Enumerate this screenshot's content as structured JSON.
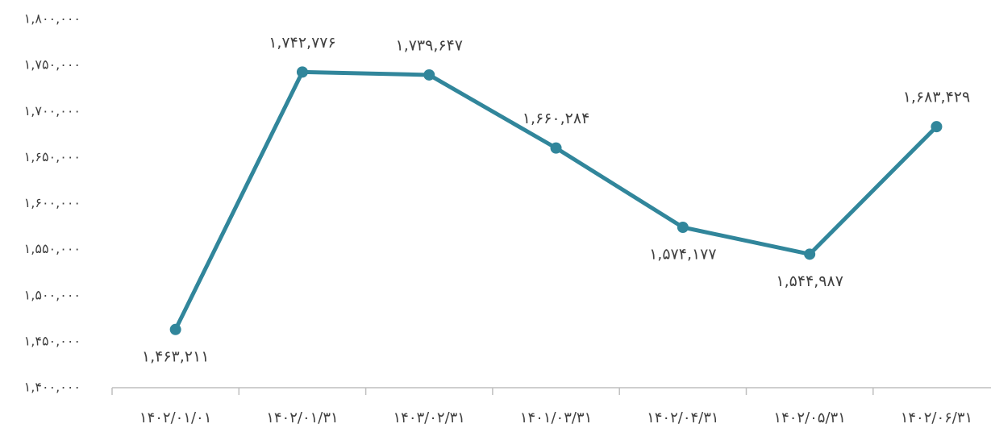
{
  "chart_data": {
    "type": "line",
    "categories": [
      "۱۴۰۲/۰۱/۰۱",
      "۱۴۰۲/۰۱/۳۱",
      "۱۴۰۳/۰۲/۳۱",
      "۱۴۰۱/۰۳/۳۱",
      "۱۴۰۲/۰۴/۳۱",
      "۱۴۰۲/۰۵/۳۱",
      "۱۴۰۲/۰۶/۳۱"
    ],
    "values": [
      1463211,
      1742776,
      1739647,
      1660284,
      1574177,
      1544987,
      1683429
    ],
    "value_labels": [
      "۱,۴۶۳,۲۱۱",
      "۱,۷۴۲,۷۷۶",
      "۱,۷۳۹,۶۴۷",
      "۱,۶۶۰,۲۸۴",
      "۱,۵۷۴,۱۷۷",
      "۱,۵۴۴,۹۸۷",
      "۱,۶۸۳,۴۲۹"
    ],
    "color": "#31869b",
    "ylim": [
      1400000,
      1800000
    ],
    "yticks": [
      {
        "value": 1400000,
        "label": "۱,۴۰۰,۰۰۰"
      },
      {
        "value": 1450000,
        "label": "۱,۴۵۰,۰۰۰"
      },
      {
        "value": 1500000,
        "label": "۱,۵۰۰,۰۰۰"
      },
      {
        "value": 1550000,
        "label": "۱,۵۵۰,۰۰۰"
      },
      {
        "value": 1600000,
        "label": "۱,۶۰۰,۰۰۰"
      },
      {
        "value": 1650000,
        "label": "۱,۶۵۰,۰۰۰"
      },
      {
        "value": 1700000,
        "label": "۱,۷۰۰,۰۰۰"
      },
      {
        "value": 1750000,
        "label": "۱,۷۵۰,۰۰۰"
      },
      {
        "value": 1800000,
        "label": "۱,۸۰۰,۰۰۰"
      }
    ],
    "grid": false
  }
}
